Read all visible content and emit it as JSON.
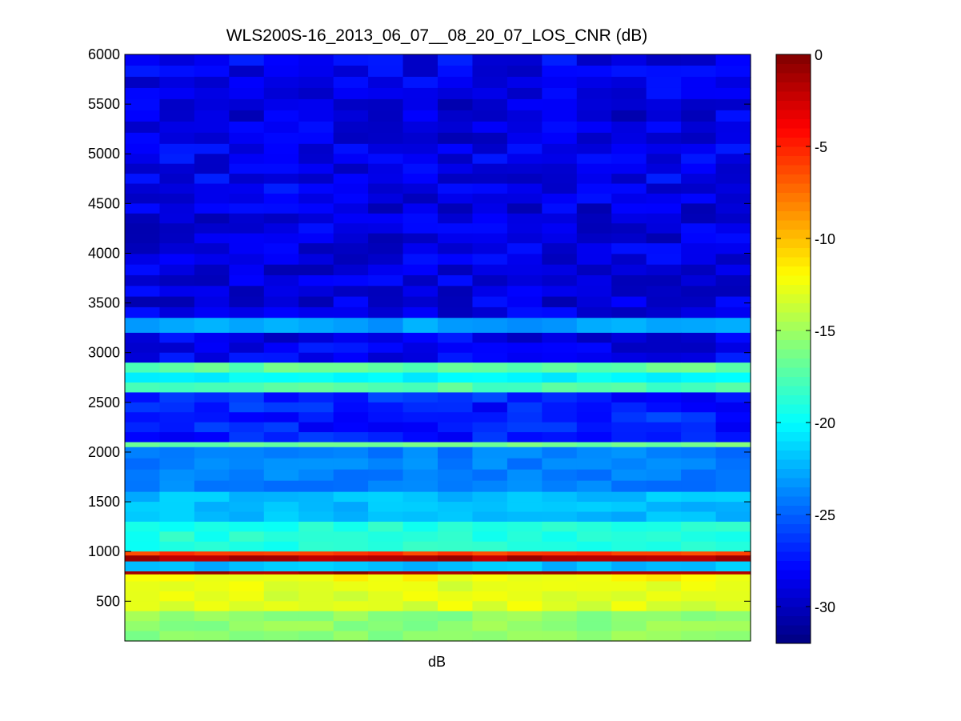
{
  "chart_data": {
    "type": "heatmap",
    "title": "WLS200S-16_2013_06_07__08_20_07_LOS_CNR (dB)",
    "xlabel": "dB",
    "ylabel": "",
    "colormap": "jet",
    "ylim": [
      100,
      6000
    ],
    "yticks": [
      500,
      1000,
      1500,
      2000,
      2500,
      3000,
      3500,
      4000,
      4500,
      5000,
      5500,
      6000
    ],
    "ytick_labels": [
      "500",
      "1000",
      "1500",
      "2000",
      "2500",
      "3000",
      "3500",
      "4000",
      "4500",
      "5000",
      "5500",
      "6000"
    ],
    "xticks": [],
    "columns": 18,
    "colorbar": {
      "range": [
        -32,
        0
      ],
      "ticks": [
        0,
        -5,
        -10,
        -15,
        -20,
        -25,
        -30
      ],
      "tick_labels": [
        "0",
        "-5",
        "-10",
        "-15",
        "-20",
        "-25",
        "-30"
      ]
    },
    "bands": [
      {
        "range": [
          5550,
          6000
        ],
        "value_db": -28.5
      },
      {
        "range": [
          5100,
          5550
        ],
        "value_db": -29.0
      },
      {
        "range": [
          4600,
          5100
        ],
        "value_db": -28.5
      },
      {
        "range": [
          4100,
          4600
        ],
        "value_db": -29.0
      },
      {
        "range": [
          3350,
          4100
        ],
        "value_db": -29.0
      },
      {
        "range": [
          3200,
          3350
        ],
        "value_db": -23.0
      },
      {
        "range": [
          2900,
          3200
        ],
        "value_db": -28.5
      },
      {
        "range": [
          2800,
          2900
        ],
        "value_db": -17.0
      },
      {
        "range": [
          2700,
          2800
        ],
        "value_db": -20.0
      },
      {
        "range": [
          2600,
          2700
        ],
        "value_db": -17.5
      },
      {
        "range": [
          2100,
          2600
        ],
        "value_db": -27.0
      },
      {
        "range": [
          2050,
          2100
        ],
        "value_db": -16.5
      },
      {
        "range": [
          1600,
          2050
        ],
        "value_db": -24.0
      },
      {
        "range": [
          1300,
          1600
        ],
        "value_db": -22.0
      },
      {
        "range": [
          1000,
          1300
        ],
        "value_db": -19.0
      },
      {
        "range": [
          960,
          1000
        ],
        "value_db": -6.0
      },
      {
        "range": [
          900,
          960
        ],
        "value_db": -1.5
      },
      {
        "range": [
          800,
          900
        ],
        "value_db": -22.0
      },
      {
        "range": [
          770,
          800
        ],
        "value_db": -1.0
      },
      {
        "range": [
          700,
          770
        ],
        "value_db": -12.0
      },
      {
        "range": [
          400,
          700
        ],
        "value_db": -13.0
      },
      {
        "range": [
          100,
          400
        ],
        "value_db": -15.5
      }
    ]
  }
}
